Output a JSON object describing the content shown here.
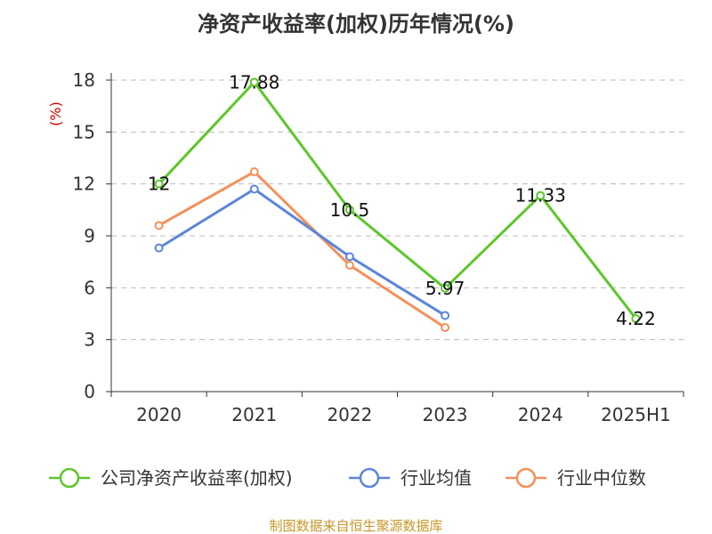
{
  "chart_data": {
    "type": "line",
    "title": "净资产收益率(加权)历年情况(%)",
    "ylabel": "(%)",
    "categories": [
      "2020",
      "2021",
      "2022",
      "2023",
      "2024",
      "2025H1"
    ],
    "ylim": [
      0,
      18
    ],
    "yticks": [
      0,
      3,
      6,
      9,
      12,
      15,
      18
    ],
    "grid": true,
    "legend_position": "bottom",
    "series": [
      {
        "name": "公司净资产收益率(加权)",
        "color": "#5cc72a",
        "values": [
          12,
          17.88,
          10.5,
          5.97,
          11.33,
          4.22
        ],
        "labels": [
          "12",
          "17.88",
          "10.5",
          "5.97",
          "11.33",
          "4.22"
        ]
      },
      {
        "name": "行业均值",
        "color": "#5b86d9",
        "values": [
          8.3,
          11.7,
          7.8,
          4.4,
          null,
          null
        ]
      },
      {
        "name": "行业中位数",
        "color": "#f5905a",
        "values": [
          9.6,
          12.7,
          7.3,
          3.7,
          null,
          null
        ]
      }
    ]
  },
  "source": "制图数据来自恒生聚源数据库"
}
